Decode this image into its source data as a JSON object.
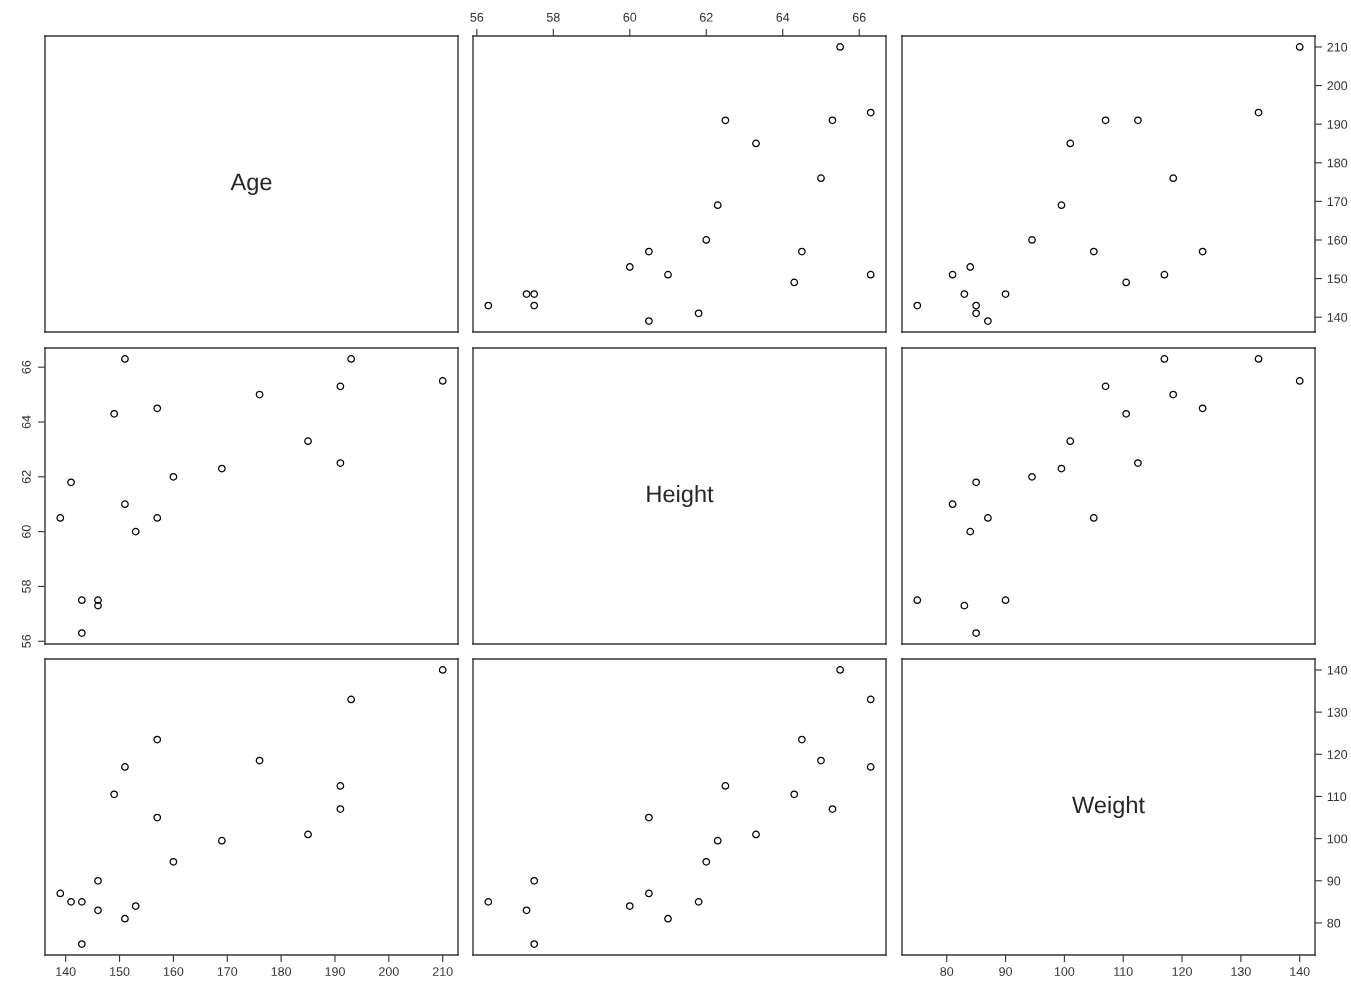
{
  "chart_data": [
    {
      "type": "other",
      "annotations": [
        "Age"
      ]
    },
    {
      "type": "scatter",
      "marker": "circle",
      "xlim": [
        55.9,
        66.7
      ],
      "ylim": [
        136.16,
        212.84
      ],
      "xticks": [
        56,
        58,
        60,
        62,
        64,
        66
      ],
      "tick_labels": "x",
      "x": [
        60.5,
        61.8,
        57.5,
        56.3,
        57.5,
        57.3,
        64.3,
        66.3,
        61.0,
        60.0,
        64.5,
        60.5,
        62.0,
        62.3,
        65.0,
        63.3,
        65.3,
        62.5,
        66.3,
        65.5
      ],
      "series": [
        {
          "color": "#000000",
          "values": [
            139,
            141,
            143,
            143,
            146,
            146,
            149,
            151,
            151,
            153,
            157,
            157,
            160,
            169,
            176,
            185,
            191,
            191,
            193,
            210
          ]
        }
      ]
    },
    {
      "type": "scatter",
      "marker": "circle",
      "xlim": [
        72.4,
        142.6
      ],
      "ylim": [
        136.16,
        212.84
      ],
      "yticks": [
        140,
        150,
        160,
        170,
        180,
        190,
        200,
        210
      ],
      "tick_labels": "y",
      "x": [
        87,
        85,
        75,
        85,
        90,
        83,
        110.5,
        117,
        81,
        84,
        123.5,
        105,
        94.5,
        99.5,
        118.5,
        101,
        107,
        112.5,
        133,
        140
      ],
      "series": [
        {
          "color": "#000000",
          "values": [
            139,
            141,
            143,
            143,
            146,
            146,
            149,
            151,
            151,
            153,
            157,
            157,
            160,
            169,
            176,
            185,
            191,
            191,
            193,
            210
          ]
        }
      ]
    },
    {
      "type": "scatter",
      "marker": "circle",
      "xlim": [
        136.16,
        212.84
      ],
      "ylim": [
        55.9,
        66.7
      ],
      "yticks": [
        56,
        58,
        60,
        62,
        64,
        66
      ],
      "tick_labels": "y",
      "x": [
        139,
        141,
        143,
        143,
        146,
        146,
        149,
        151,
        151,
        153,
        157,
        157,
        160,
        169,
        176,
        185,
        191,
        191,
        193,
        210
      ],
      "series": [
        {
          "color": "#000000",
          "values": [
            60.5,
            61.8,
            57.5,
            56.3,
            57.5,
            57.3,
            64.3,
            66.3,
            61.0,
            60.0,
            64.5,
            60.5,
            62.0,
            62.3,
            65.0,
            63.3,
            65.3,
            62.5,
            66.3,
            65.5
          ]
        }
      ]
    },
    {
      "type": "other",
      "annotations": [
        "Height"
      ]
    },
    {
      "type": "scatter",
      "marker": "circle",
      "xlim": [
        72.4,
        142.6
      ],
      "ylim": [
        55.9,
        66.7
      ],
      "tick_labels": false,
      "x": [
        87,
        85,
        75,
        85,
        90,
        83,
        110.5,
        117,
        81,
        84,
        123.5,
        105,
        94.5,
        99.5,
        118.5,
        101,
        107,
        112.5,
        133,
        140
      ],
      "series": [
        {
          "color": "#000000",
          "values": [
            60.5,
            61.8,
            57.5,
            56.3,
            57.5,
            57.3,
            64.3,
            66.3,
            61.0,
            60.0,
            64.5,
            60.5,
            62.0,
            62.3,
            65.0,
            63.3,
            65.3,
            62.5,
            66.3,
            65.5
          ]
        }
      ]
    },
    {
      "type": "scatter",
      "marker": "circle",
      "xlim": [
        136.16,
        212.84
      ],
      "ylim": [
        72.4,
        142.6
      ],
      "xticks": [
        140,
        150,
        160,
        170,
        180,
        190,
        200,
        210
      ],
      "tick_labels": "x",
      "x": [
        139,
        141,
        143,
        143,
        146,
        146,
        149,
        151,
        151,
        153,
        157,
        157,
        160,
        169,
        176,
        185,
        191,
        191,
        193,
        210
      ],
      "series": [
        {
          "color": "#000000",
          "values": [
            87,
            85,
            75,
            85,
            90,
            83,
            110.5,
            117,
            81,
            84,
            123.5,
            105,
            94.5,
            99.5,
            118.5,
            101,
            107,
            112.5,
            133,
            140
          ]
        }
      ]
    },
    {
      "type": "scatter",
      "marker": "circle",
      "xlim": [
        55.9,
        66.7
      ],
      "ylim": [
        72.4,
        142.6
      ],
      "tick_labels": false,
      "x": [
        60.5,
        61.8,
        57.5,
        56.3,
        57.5,
        57.3,
        64.3,
        66.3,
        61.0,
        60.0,
        64.5,
        60.5,
        62.0,
        62.3,
        65.0,
        63.3,
        65.3,
        62.5,
        66.3,
        65.5
      ],
      "series": [
        {
          "color": "#000000",
          "values": [
            87,
            85,
            75,
            85,
            90,
            83,
            110.5,
            117,
            81,
            84,
            123.5,
            105,
            94.5,
            99.5,
            118.5,
            101,
            107,
            112.5,
            133,
            140
          ]
        }
      ]
    },
    {
      "type": "scatter",
      "annotations": [
        "Weight"
      ],
      "xlim": [
        72.4,
        142.6
      ],
      "xticks": [
        80,
        90,
        100,
        110,
        120,
        130,
        140
      ],
      "ylim": [
        72.4,
        142.6
      ],
      "yticks": [
        80,
        90,
        100,
        110,
        120,
        130,
        140
      ]
    }
  ]
}
